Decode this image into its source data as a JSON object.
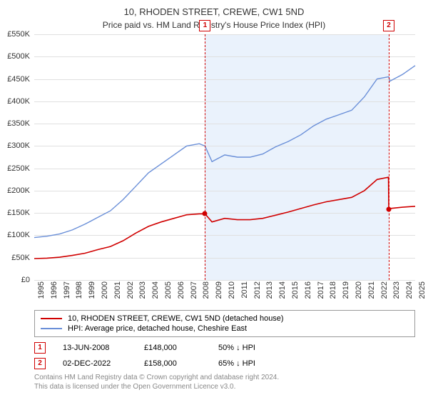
{
  "title": "10, RHODEN STREET, CREWE, CW1 5ND",
  "subtitle": "Price paid vs. HM Land Registry's House Price Index (HPI)",
  "chart": {
    "type": "line",
    "background_color": "#ffffff",
    "grid_color": "#e0e0e0",
    "shade_color": "#eaf2fc",
    "ylim": [
      0,
      550000
    ],
    "ytick_step": 50000,
    "yticks": [
      "£0",
      "£50K",
      "£100K",
      "£150K",
      "£200K",
      "£250K",
      "£300K",
      "£350K",
      "£400K",
      "£450K",
      "£500K",
      "£550K"
    ],
    "x_years": [
      1995,
      1996,
      1997,
      1998,
      1999,
      2000,
      2001,
      2002,
      2003,
      2004,
      2005,
      2006,
      2007,
      2008,
      2009,
      2010,
      2011,
      2012,
      2013,
      2014,
      2015,
      2016,
      2017,
      2018,
      2019,
      2020,
      2021,
      2022,
      2023,
      2024,
      2025
    ],
    "series": [
      {
        "name": "price_paid",
        "label": "10, RHODEN STREET, CREWE, CW1 5ND (detached house)",
        "color": "#d00000",
        "line_width": 1.6,
        "data": [
          [
            1995,
            48000
          ],
          [
            1996,
            49000
          ],
          [
            1997,
            51000
          ],
          [
            1998,
            55000
          ],
          [
            1999,
            60000
          ],
          [
            2000,
            68000
          ],
          [
            2001,
            75000
          ],
          [
            2002,
            88000
          ],
          [
            2003,
            105000
          ],
          [
            2004,
            120000
          ],
          [
            2005,
            130000
          ],
          [
            2006,
            138000
          ],
          [
            2007,
            146000
          ],
          [
            2008,
            148000
          ],
          [
            2008.45,
            148000
          ],
          [
            2009,
            130000
          ],
          [
            2010,
            138000
          ],
          [
            2011,
            135000
          ],
          [
            2012,
            135000
          ],
          [
            2013,
            138000
          ],
          [
            2014,
            145000
          ],
          [
            2015,
            152000
          ],
          [
            2016,
            160000
          ],
          [
            2017,
            168000
          ],
          [
            2018,
            175000
          ],
          [
            2019,
            180000
          ],
          [
            2020,
            185000
          ],
          [
            2021,
            200000
          ],
          [
            2022,
            225000
          ],
          [
            2022.9,
            230000
          ],
          [
            2022.92,
            158000
          ],
          [
            2023,
            160000
          ],
          [
            2024,
            163000
          ],
          [
            2025,
            165000
          ]
        ]
      },
      {
        "name": "hpi",
        "label": "HPI: Average price, detached house, Cheshire East",
        "color": "#6a8fd8",
        "line_width": 1.4,
        "data": [
          [
            1995,
            95000
          ],
          [
            1996,
            98000
          ],
          [
            1997,
            103000
          ],
          [
            1998,
            112000
          ],
          [
            1999,
            125000
          ],
          [
            2000,
            140000
          ],
          [
            2001,
            155000
          ],
          [
            2002,
            180000
          ],
          [
            2003,
            210000
          ],
          [
            2004,
            240000
          ],
          [
            2005,
            260000
          ],
          [
            2006,
            280000
          ],
          [
            2007,
            300000
          ],
          [
            2008,
            305000
          ],
          [
            2008.45,
            300000
          ],
          [
            2009,
            265000
          ],
          [
            2010,
            280000
          ],
          [
            2011,
            275000
          ],
          [
            2012,
            275000
          ],
          [
            2013,
            282000
          ],
          [
            2014,
            298000
          ],
          [
            2015,
            310000
          ],
          [
            2016,
            325000
          ],
          [
            2017,
            345000
          ],
          [
            2018,
            360000
          ],
          [
            2019,
            370000
          ],
          [
            2020,
            380000
          ],
          [
            2021,
            410000
          ],
          [
            2022,
            450000
          ],
          [
            2022.92,
            455000
          ],
          [
            2023,
            445000
          ],
          [
            2024,
            460000
          ],
          [
            2025,
            480000
          ]
        ]
      }
    ],
    "markers": [
      {
        "id": "1",
        "x": 2008.45,
        "y": 148000
      },
      {
        "id": "2",
        "x": 2022.92,
        "y": 158000
      }
    ],
    "marker_badge_border": "#d00000",
    "marker_badge_text": "#d00000"
  },
  "legend": {
    "items": [
      {
        "color": "#d00000",
        "label": "10, RHODEN STREET, CREWE, CW1 5ND (detached house)"
      },
      {
        "color": "#6a8fd8",
        "label": "HPI: Average price, detached house, Cheshire East"
      }
    ]
  },
  "transactions": [
    {
      "badge": "1",
      "date": "13-JUN-2008",
      "price": "£148,000",
      "pct": "50% ↓ HPI"
    },
    {
      "badge": "2",
      "date": "02-DEC-2022",
      "price": "£158,000",
      "pct": "65% ↓ HPI"
    }
  ],
  "footer_lines": [
    "Contains HM Land Registry data © Crown copyright and database right 2024.",
    "This data is licensed under the Open Government Licence v3.0."
  ],
  "fonts": {
    "title_size": 13,
    "subtitle_size": 12,
    "axis_size": 11,
    "legend_size": 11,
    "footer_size": 10
  }
}
